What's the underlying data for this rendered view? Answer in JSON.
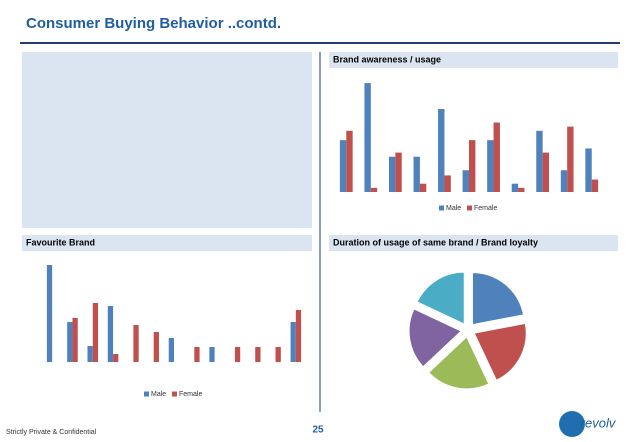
{
  "slide": {
    "title": "Consumer Buying Behavior ..contd.",
    "footer": "Strictly Private & Confidential",
    "page": "25",
    "logo": "revolv"
  },
  "chart_data": [
    {
      "type": "bar",
      "title": "Brand awareness / usage",
      "categories": [
        null,
        null,
        null,
        null,
        null,
        null,
        null,
        null,
        null,
        null,
        null
      ],
      "series": [
        {
          "name": "Male",
          "color": "#4f81bd",
          "values": [
            50,
            105,
            34,
            34,
            80,
            21,
            50,
            8,
            59,
            21,
            42
          ]
        },
        {
          "name": "Female",
          "color": "#c0504d",
          "values": [
            59,
            4,
            38,
            8,
            16,
            50,
            67,
            4,
            38,
            63,
            12
          ]
        }
      ],
      "ylim": [
        0,
        108
      ],
      "legend": "bottom"
    },
    {
      "type": "bar",
      "title": "Favourite Brand",
      "categories": [
        null,
        null,
        null,
        null,
        null,
        null,
        null,
        null,
        null,
        null,
        null,
        null,
        null
      ],
      "series": [
        {
          "name": "Male",
          "color": "#4f81bd",
          "values": [
            97,
            40,
            16,
            56,
            0,
            0,
            24,
            0,
            15,
            0,
            0,
            0,
            40
          ]
        },
        {
          "name": "Female",
          "color": "#c0504d",
          "values": [
            0,
            44,
            59,
            8,
            37,
            30,
            0,
            15,
            0,
            15,
            15,
            15,
            52
          ]
        }
      ],
      "ylim": [
        0,
        100
      ],
      "legend": "bottom"
    },
    {
      "type": "pie",
      "title": "Duration of usage of same brand / Brand loyalty",
      "values": [
        22,
        21,
        20,
        19,
        18
      ],
      "colors": [
        "#4f81bd",
        "#c0504d",
        "#9bbb59",
        "#8064a2",
        "#4bacc6"
      ],
      "exploded": true
    }
  ]
}
